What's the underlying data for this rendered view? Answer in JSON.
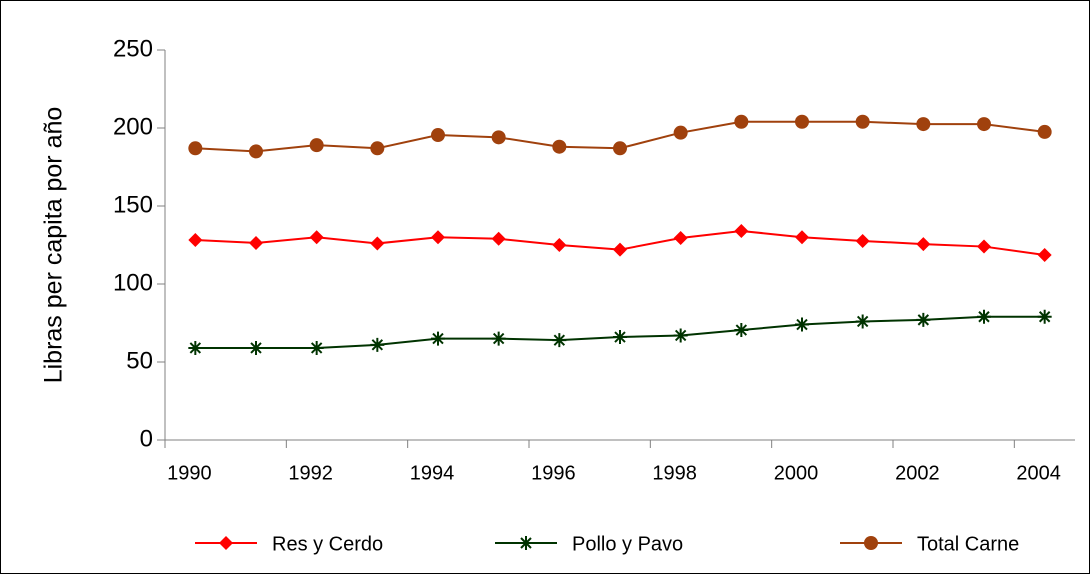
{
  "chart_data": {
    "type": "line",
    "y_label": "Libras per capita por año",
    "categories": [
      "1990",
      null,
      "1992",
      null,
      "1994",
      null,
      "1996",
      null,
      "1998",
      null,
      "2000",
      null,
      "2002",
      null,
      "2004"
    ],
    "series": [
      {
        "name": "Res y Cerdo",
        "color": "#ff0000",
        "marker": "diamond",
        "values": [
          128.2,
          126.3,
          130,
          126,
          130,
          129,
          125,
          122,
          129.5,
          134,
          130,
          127.6,
          125.6,
          124,
          118.6
        ]
      },
      {
        "name": "Pollo y Pavo",
        "color": "#003300",
        "marker": "asterisk",
        "values": [
          59,
          59,
          59,
          61,
          65,
          65,
          64,
          66,
          67,
          70.5,
          74,
          76,
          77,
          79,
          79
        ]
      },
      {
        "name": "Total Carne",
        "color": "#a0410d",
        "marker": "circle",
        "values": [
          187,
          185,
          189,
          187,
          195.5,
          194,
          188,
          187,
          197,
          204,
          204,
          204,
          202.5,
          202.5,
          197.5
        ]
      }
    ],
    "ylim": [
      0,
      250
    ],
    "yticks": [
      0,
      50,
      100,
      150,
      200,
      250
    ],
    "grid": false,
    "legend": "bottom"
  }
}
